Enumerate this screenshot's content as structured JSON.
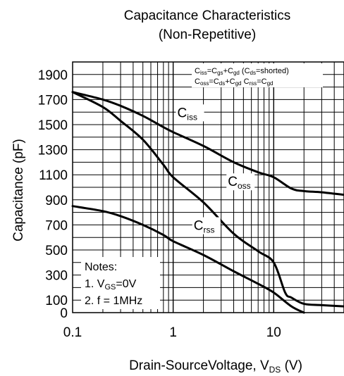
{
  "chart_data": {
    "type": "line",
    "title": "Capacitance Characteristics",
    "subtitle": "(Non-Repetitive)",
    "xlabel": {
      "main": "Drain-SourceVoltage, V",
      "sub": "DS",
      "unit": " (V)"
    },
    "ylabel": "Capacitance (pF)",
    "xscale": "log",
    "xlim": [
      0.1,
      50
    ],
    "ylim": [
      0,
      2000
    ],
    "grid": true,
    "x_ticks": [
      {
        "value": 0.1,
        "label": "0.1"
      },
      {
        "value": 1,
        "label": "1"
      },
      {
        "value": 10,
        "label": "10"
      }
    ],
    "y_ticks": [
      {
        "value": 0,
        "label": "0"
      },
      {
        "value": 100,
        "label": "100"
      },
      {
        "value": 300,
        "label": "300"
      },
      {
        "value": 500,
        "label": "500"
      },
      {
        "value": 700,
        "label": "700"
      },
      {
        "value": 900,
        "label": "900"
      },
      {
        "value": 1100,
        "label": "1100"
      },
      {
        "value": 1300,
        "label": "1300"
      },
      {
        "value": 1500,
        "label": "1500"
      },
      {
        "value": 1700,
        "label": "1700"
      },
      {
        "value": 1900,
        "label": "1900"
      }
    ],
    "series": [
      {
        "name": "C",
        "sub": "iss",
        "x": [
          0.1,
          0.2,
          0.3,
          0.5,
          0.8,
          1,
          2,
          4,
          7,
          10,
          15,
          20,
          30,
          50
        ],
        "y": [
          1760,
          1700,
          1650,
          1570,
          1480,
          1440,
          1330,
          1200,
          1120,
          1080,
          990,
          970,
          960,
          940
        ]
      },
      {
        "name": "C",
        "sub": "oss",
        "x": [
          0.1,
          0.2,
          0.3,
          0.5,
          0.8,
          1,
          2,
          4,
          7,
          10,
          13,
          15,
          20,
          30,
          50
        ],
        "y": [
          1760,
          1640,
          1530,
          1380,
          1180,
          1080,
          880,
          630,
          490,
          400,
          160,
          120,
          70,
          60,
          50
        ]
      },
      {
        "name": "C",
        "sub": "rss",
        "x": [
          0.1,
          0.2,
          0.3,
          0.5,
          0.8,
          1,
          2,
          4,
          7,
          10,
          15,
          20
        ],
        "y": [
          850,
          810,
          770,
          700,
          620,
          570,
          460,
          330,
          230,
          160,
          50,
          0
        ]
      }
    ],
    "annotation": [
      {
        "line": 1,
        "parts": [
          {
            "t": "C"
          },
          {
            "t": "iss",
            "sub": true
          },
          {
            "t": "=C"
          },
          {
            "t": "gs",
            "sub": true
          },
          {
            "t": "+C"
          },
          {
            "t": "gd",
            "sub": true
          },
          {
            "t": " (C"
          },
          {
            "t": "ds",
            "sub": true
          },
          {
            "t": "=shorted)"
          }
        ]
      },
      {
        "line": 2,
        "parts": [
          {
            "t": "C"
          },
          {
            "t": "oss",
            "sub": true
          },
          {
            "t": "=C"
          },
          {
            "t": "ds",
            "sub": true
          },
          {
            "t": "+C"
          },
          {
            "t": "gd",
            "sub": true
          },
          {
            "t": "   C"
          },
          {
            "t": "rss",
            "sub": true
          },
          {
            "t": "=C"
          },
          {
            "t": "gd",
            "sub": true
          }
        ]
      }
    ],
    "notes": {
      "heading": "Notes:",
      "line1": {
        "pre": "1. V",
        "sub": "GS",
        "post": "=0V"
      },
      "line2": "2. f = 1MHz"
    }
  }
}
